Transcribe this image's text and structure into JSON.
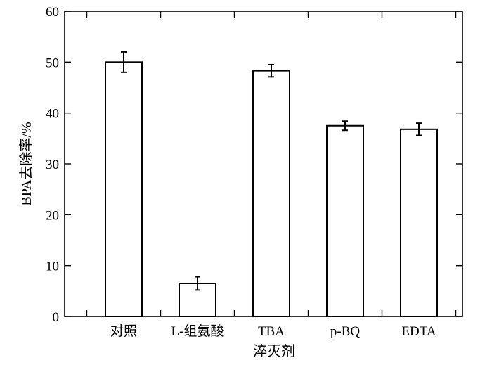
{
  "chart_data": {
    "type": "bar",
    "categories": [
      "对照",
      "L-组氨酸",
      "TBA",
      "p-BQ",
      "EDTA"
    ],
    "values": [
      50.0,
      6.5,
      48.3,
      37.5,
      36.8
    ],
    "error": [
      2.0,
      1.3,
      1.2,
      0.9,
      1.2
    ],
    "xlabel": "淬灭剂",
    "ylabel": "BPA去除率/%",
    "ylim": [
      0,
      60
    ],
    "yticks": [
      0,
      10,
      20,
      30,
      40,
      50,
      60
    ],
    "grid": false,
    "bar_color": "#ffffff",
    "edge_color": "#000000"
  }
}
